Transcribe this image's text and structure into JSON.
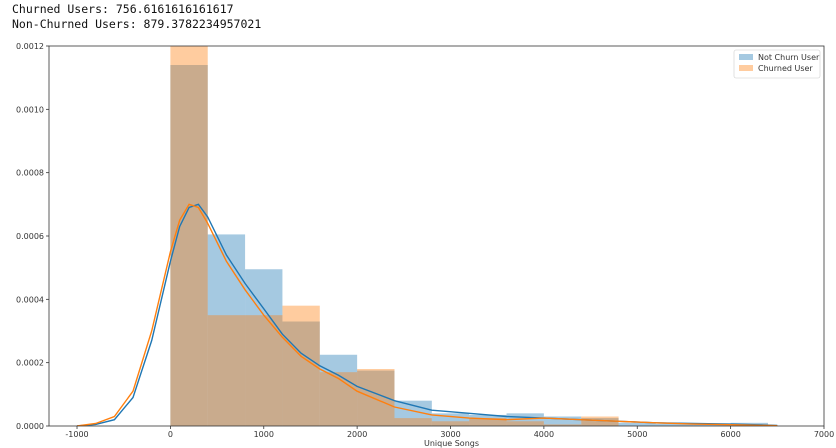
{
  "output": {
    "churned_line": "Churned Users: 756.6161616161617",
    "nonchurned_line": "Non-Churned Users: 879.3782234957021"
  },
  "chart_data": {
    "type": "bar",
    "xlabel": "Unique Songs",
    "ylabel": "",
    "xlim": [
      -1300,
      7000
    ],
    "ylim": [
      0,
      0.0012
    ],
    "x_ticks": [
      -1000,
      0,
      1000,
      2000,
      3000,
      4000,
      5000,
      6000,
      7000
    ],
    "y_ticks": [
      0.0,
      0.0002,
      0.0004,
      0.0006,
      0.0008,
      0.001,
      0.0012
    ],
    "y_tick_labels": [
      "0.0000",
      "0.0002",
      "0.0004",
      "0.0006",
      "0.0008",
      "0.0010",
      "0.0012"
    ],
    "legend_position": "top-right",
    "grid": false,
    "series": [
      {
        "name": "Not Churn User",
        "color": "#1f77b4",
        "hist_edges": [
          0,
          400,
          800,
          1200,
          1600,
          2000,
          2400,
          2800,
          3200,
          3600,
          4000,
          4400,
          4800,
          5200,
          5600,
          6000,
          6400
        ],
        "hist_values": [
          0.00114,
          0.000605,
          0.000495,
          0.00033,
          0.000225,
          0.000175,
          8e-05,
          4e-05,
          3.5e-05,
          4e-05,
          3e-05,
          2.5e-05,
          1e-05,
          7e-06,
          5e-06,
          1e-05
        ],
        "kde_x": [
          -1000,
          -800,
          -600,
          -400,
          -200,
          0,
          100,
          200,
          300,
          400,
          600,
          800,
          1000,
          1200,
          1400,
          1600,
          1800,
          2000,
          2400,
          2800,
          3200,
          3600,
          4000,
          4400,
          4800,
          5200,
          5600,
          6000,
          6500
        ],
        "kde_y": [
          0.0,
          5e-06,
          2e-05,
          9e-05,
          0.00027,
          0.00052,
          0.00063,
          0.00069,
          0.0007,
          0.00066,
          0.00054,
          0.00045,
          0.00037,
          0.00029,
          0.00023,
          0.00019,
          0.00016,
          0.000125,
          8e-05,
          5e-05,
          4e-05,
          3e-05,
          2.5e-05,
          2e-05,
          1.5e-05,
          1e-05,
          8e-06,
          6e-06,
          2e-06
        ]
      },
      {
        "name": "Churned User",
        "color": "#ff7f0e",
        "hist_edges": [
          0,
          400,
          800,
          1200,
          1600,
          2000,
          2400,
          2800,
          3200,
          3600,
          4000,
          4400,
          4800
        ],
        "hist_values": [
          0.0012,
          0.00035,
          0.00035,
          0.00038,
          0.00017,
          0.00018,
          2.5e-05,
          1.5e-05,
          2.5e-05,
          1.5e-05,
          5e-06,
          3e-05
        ],
        "kde_x": [
          -1000,
          -800,
          -600,
          -400,
          -200,
          0,
          100,
          200,
          300,
          400,
          600,
          800,
          1000,
          1200,
          1400,
          1600,
          1800,
          2000,
          2400,
          2800,
          3200,
          3600,
          4000,
          4400,
          4800,
          5200,
          5600,
          6000,
          6500
        ],
        "kde_y": [
          0.0,
          8e-06,
          3e-05,
          0.00011,
          0.0003,
          0.00055,
          0.00065,
          0.0007,
          0.00069,
          0.00064,
          0.00052,
          0.00043,
          0.00035,
          0.00028,
          0.00022,
          0.00018,
          0.00015,
          0.00011,
          6e-05,
          3.5e-05,
          2.5e-05,
          2e-05,
          2.5e-05,
          2e-05,
          1.5e-05,
          1e-05,
          6e-06,
          4e-06,
          1e-06
        ]
      }
    ]
  }
}
